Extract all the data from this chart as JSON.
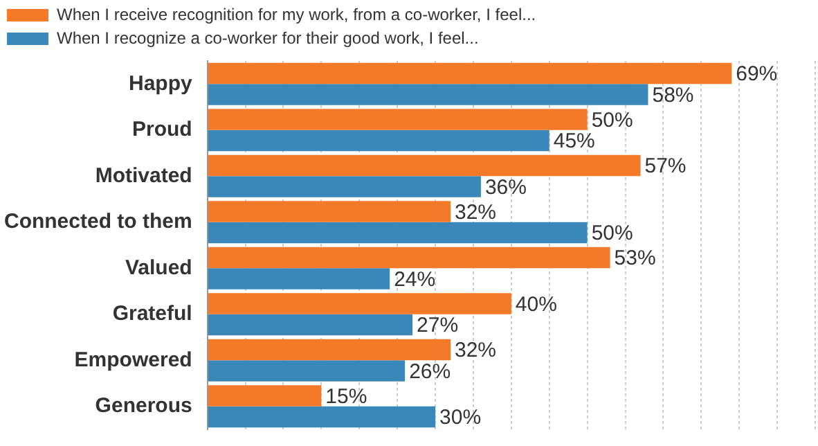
{
  "chart_data": {
    "type": "bar",
    "orientation": "horizontal",
    "categories": [
      "Happy",
      "Proud",
      "Motivated",
      "Connected to them",
      "Valued",
      "Grateful",
      "Empowered",
      "Generous"
    ],
    "series": [
      {
        "name": "When I receive recognition for my work, from a co-worker, I feel...",
        "color": "#f47a2a",
        "values": [
          69,
          50,
          57,
          32,
          53,
          40,
          32,
          15
        ],
        "value_labels": [
          "69%",
          "50%",
          "57%",
          "32%",
          "53%",
          "40%",
          "32%",
          "15%"
        ]
      },
      {
        "name": "When I recognize a co-worker for their good work, I feel...",
        "color": "#3a88b9",
        "values": [
          58,
          45,
          36,
          50,
          24,
          27,
          26,
          30
        ],
        "value_labels": [
          "58%",
          "45%",
          "36%",
          "50%",
          "24%",
          "27%",
          "26%",
          "30%"
        ]
      }
    ],
    "xlim": [
      0,
      80
    ],
    "xticks": [
      {
        "value": 0,
        "label": null
      },
      {
        "value": 5,
        "label": null
      },
      {
        "value": 10,
        "label": null
      },
      {
        "value": 15,
        "label": null
      },
      {
        "value": 20,
        "label": null
      },
      {
        "value": 25,
        "label": null
      },
      {
        "value": 30,
        "label": null
      },
      {
        "value": 35,
        "label": null
      },
      {
        "value": 40,
        "label": null
      },
      {
        "value": 45,
        "label": null
      },
      {
        "value": 50,
        "label": null
      },
      {
        "value": 55,
        "label": null
      },
      {
        "value": 60,
        "label": null
      },
      {
        "value": 65,
        "label": null
      },
      {
        "value": 70,
        "label": null
      },
      {
        "value": 75,
        "label": null
      },
      {
        "value": 80,
        "label": null
      }
    ],
    "grid": "x",
    "legend": "top left",
    "tick_labels": "y"
  }
}
